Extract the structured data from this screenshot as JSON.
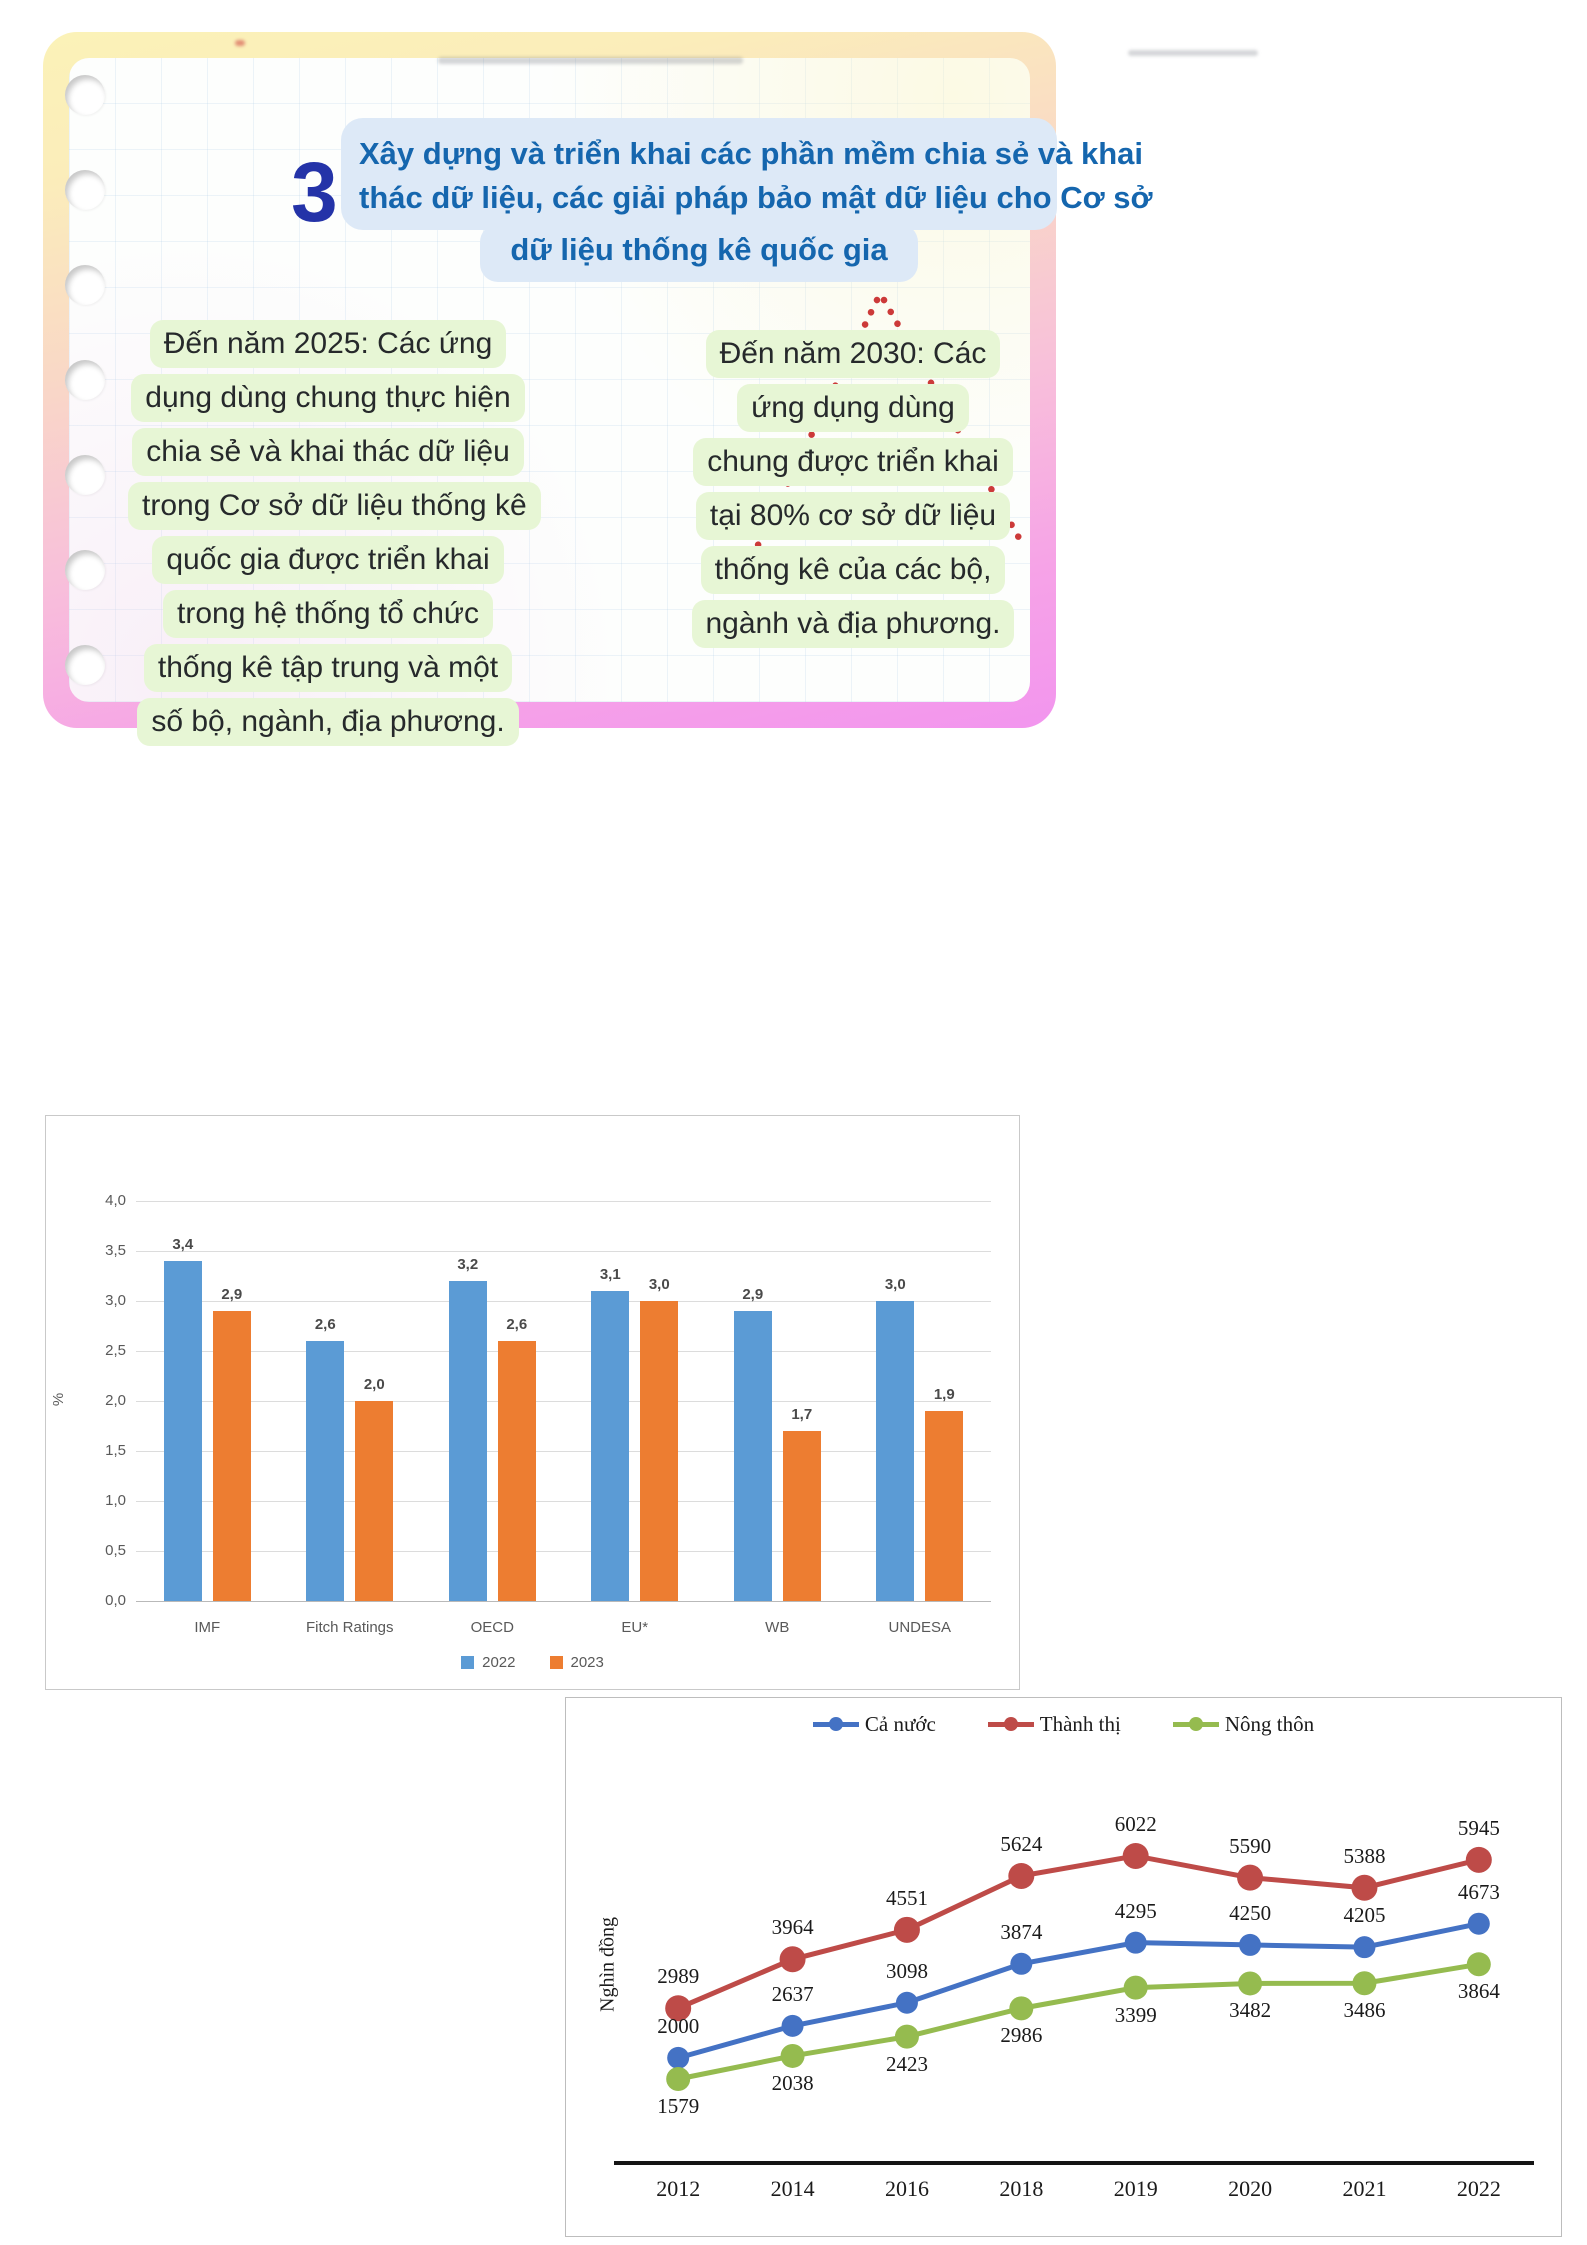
{
  "card": {
    "number": "3",
    "title_lines": [
      "Xây dựng và triển khai các phần mềm chia sẻ và khai",
      "thác dữ liệu, các giải pháp bảo mật dữ liệu cho Cơ sở",
      "dữ liệu thống kê quốc gia"
    ],
    "left_note_lines": [
      "Đến năm 2025: Các ứng",
      "dụng dùng chung thực hiện",
      "chia sẻ và khai thác dữ liệu",
      "trong Cơ sở dữ liệu thống kê",
      "quốc gia được triển khai",
      "trong hệ thống tổ chức",
      "thống kê tập trung và một",
      "số bộ, ngành, địa phương."
    ],
    "right_note_lines": [
      "Đến năm 2030: Các",
      "ứng dụng dùng",
      "chung được triển khai",
      "tại 80% cơ sở dữ liệu",
      "thống kê của các bộ,",
      "ngành và địa phương."
    ],
    "colors": {
      "title_text": "#1566ae",
      "title_bg": "#dde9f7",
      "number": "#2433a8",
      "note_highlight": "#e7f6d5",
      "dotted_connector": "#cc3a39"
    }
  },
  "chart_data": [
    {
      "type": "bar",
      "title": "",
      "categories": [
        "IMF",
        "Fitch Ratings",
        "OECD",
        "EU*",
        "WB",
        "UNDESA"
      ],
      "series": [
        {
          "name": "2022",
          "color": "#5B9BD5",
          "values": [
            3.4,
            2.6,
            3.2,
            3.1,
            2.9,
            3.0
          ]
        },
        {
          "name": "2023",
          "color": "#ED7D31",
          "values": [
            2.9,
            2.0,
            2.6,
            3.0,
            1.7,
            1.9
          ]
        }
      ],
      "value_labels": [
        [
          "3,4",
          "2,6",
          "3,2",
          "3,1",
          "2,9",
          "3,0"
        ],
        [
          "2,9",
          "2,0",
          "2,6",
          "3,0",
          "1,7",
          "1,9"
        ]
      ],
      "xlabel": "",
      "ylabel": "%",
      "ylim": [
        0,
        4
      ],
      "yticks": [
        "4,0",
        "3,5",
        "3,0",
        "2,5",
        "2,0",
        "1,5",
        "1,0",
        "0,5",
        "0,0"
      ],
      "grid": true,
      "legend_position": "bottom"
    },
    {
      "type": "line",
      "title": "",
      "x": [
        "2012",
        "2014",
        "2016",
        "2018",
        "2019",
        "2020",
        "2021",
        "2022"
      ],
      "series": [
        {
          "name": "Cả nước",
          "color": "#4472C4",
          "values": [
            2000,
            2637,
            3098,
            3874,
            4295,
            4250,
            4205,
            4673
          ],
          "label_side": "above"
        },
        {
          "name": "Thành thị",
          "color": "#BE4B48",
          "values": [
            2989,
            3964,
            4551,
            5624,
            6022,
            5590,
            5388,
            5945
          ],
          "label_side": "above"
        },
        {
          "name": "Nông thôn",
          "color": "#95BB4F",
          "values": [
            1579,
            2038,
            2423,
            2986,
            3399,
            3482,
            3486,
            3864
          ],
          "label_side": "below"
        }
      ],
      "xlabel": "",
      "ylabel": "Nghìn đồng",
      "ylim": [
        1300,
        6400
      ],
      "grid": false,
      "legend_position": "top"
    }
  ]
}
